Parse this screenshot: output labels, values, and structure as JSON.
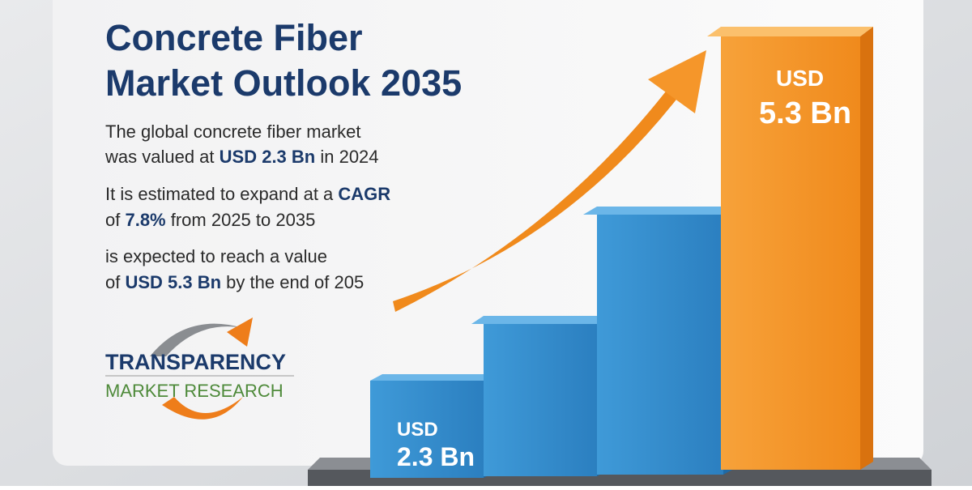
{
  "header": {
    "title": [
      "Concrete Fiber",
      "Market Outlook 2035"
    ]
  },
  "paragraphs": [
    [
      [
        "The global concrete fiber market"
      ],
      [
        "was valued at ",
        "USD 2.3 Bn",
        " in 2024"
      ]
    ],
    [
      [
        "It is estimated to expand at a ",
        "CAGR"
      ],
      [
        "of ",
        "7.8%",
        " from 2025 to 2035"
      ]
    ],
    [
      [
        "is expected to reach a value"
      ],
      [
        "of ",
        "USD 5.3 Bn",
        " by the end of 205"
      ]
    ]
  ],
  "bars": [
    {
      "currency": "USD",
      "amount": "2.3 Bn"
    },
    {
      "currency": "USD",
      "amount": "5.3 Bn"
    }
  ],
  "logo": {
    "name": "TRANSPARENCY",
    "sub": "MARKET RESEARCH"
  }
}
